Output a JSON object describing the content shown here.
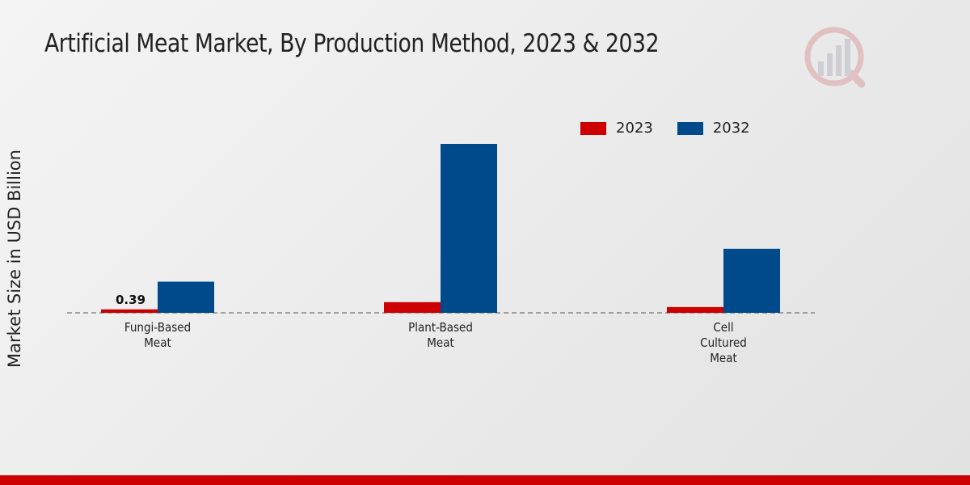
{
  "title": "Artificial Meat Market, By Production Method, 2023 & 2032",
  "colors": {
    "series_2023": "#cc0000",
    "series_2032": "#004a8c",
    "footer": "#cc0000"
  },
  "chart_data": {
    "type": "bar",
    "title": "Artificial Meat Market, By Production Method, 2023 & 2032",
    "xlabel": "",
    "ylabel": "Market Size in USD Billion",
    "categories": [
      "Fungi-Based\nMeat",
      "Plant-Based\nMeat",
      "Cell\nCultured\nMeat"
    ],
    "series": [
      {
        "name": "2023",
        "values": [
          0.39,
          1.2,
          0.65
        ]
      },
      {
        "name": "2032",
        "values": [
          3.5,
          19.0,
          7.2
        ]
      }
    ],
    "ylim": [
      0,
      35
    ],
    "grid": false,
    "legend": "top-right",
    "data_labels": [
      {
        "series": "2023",
        "category_index": 0,
        "text": "0.39"
      }
    ]
  }
}
